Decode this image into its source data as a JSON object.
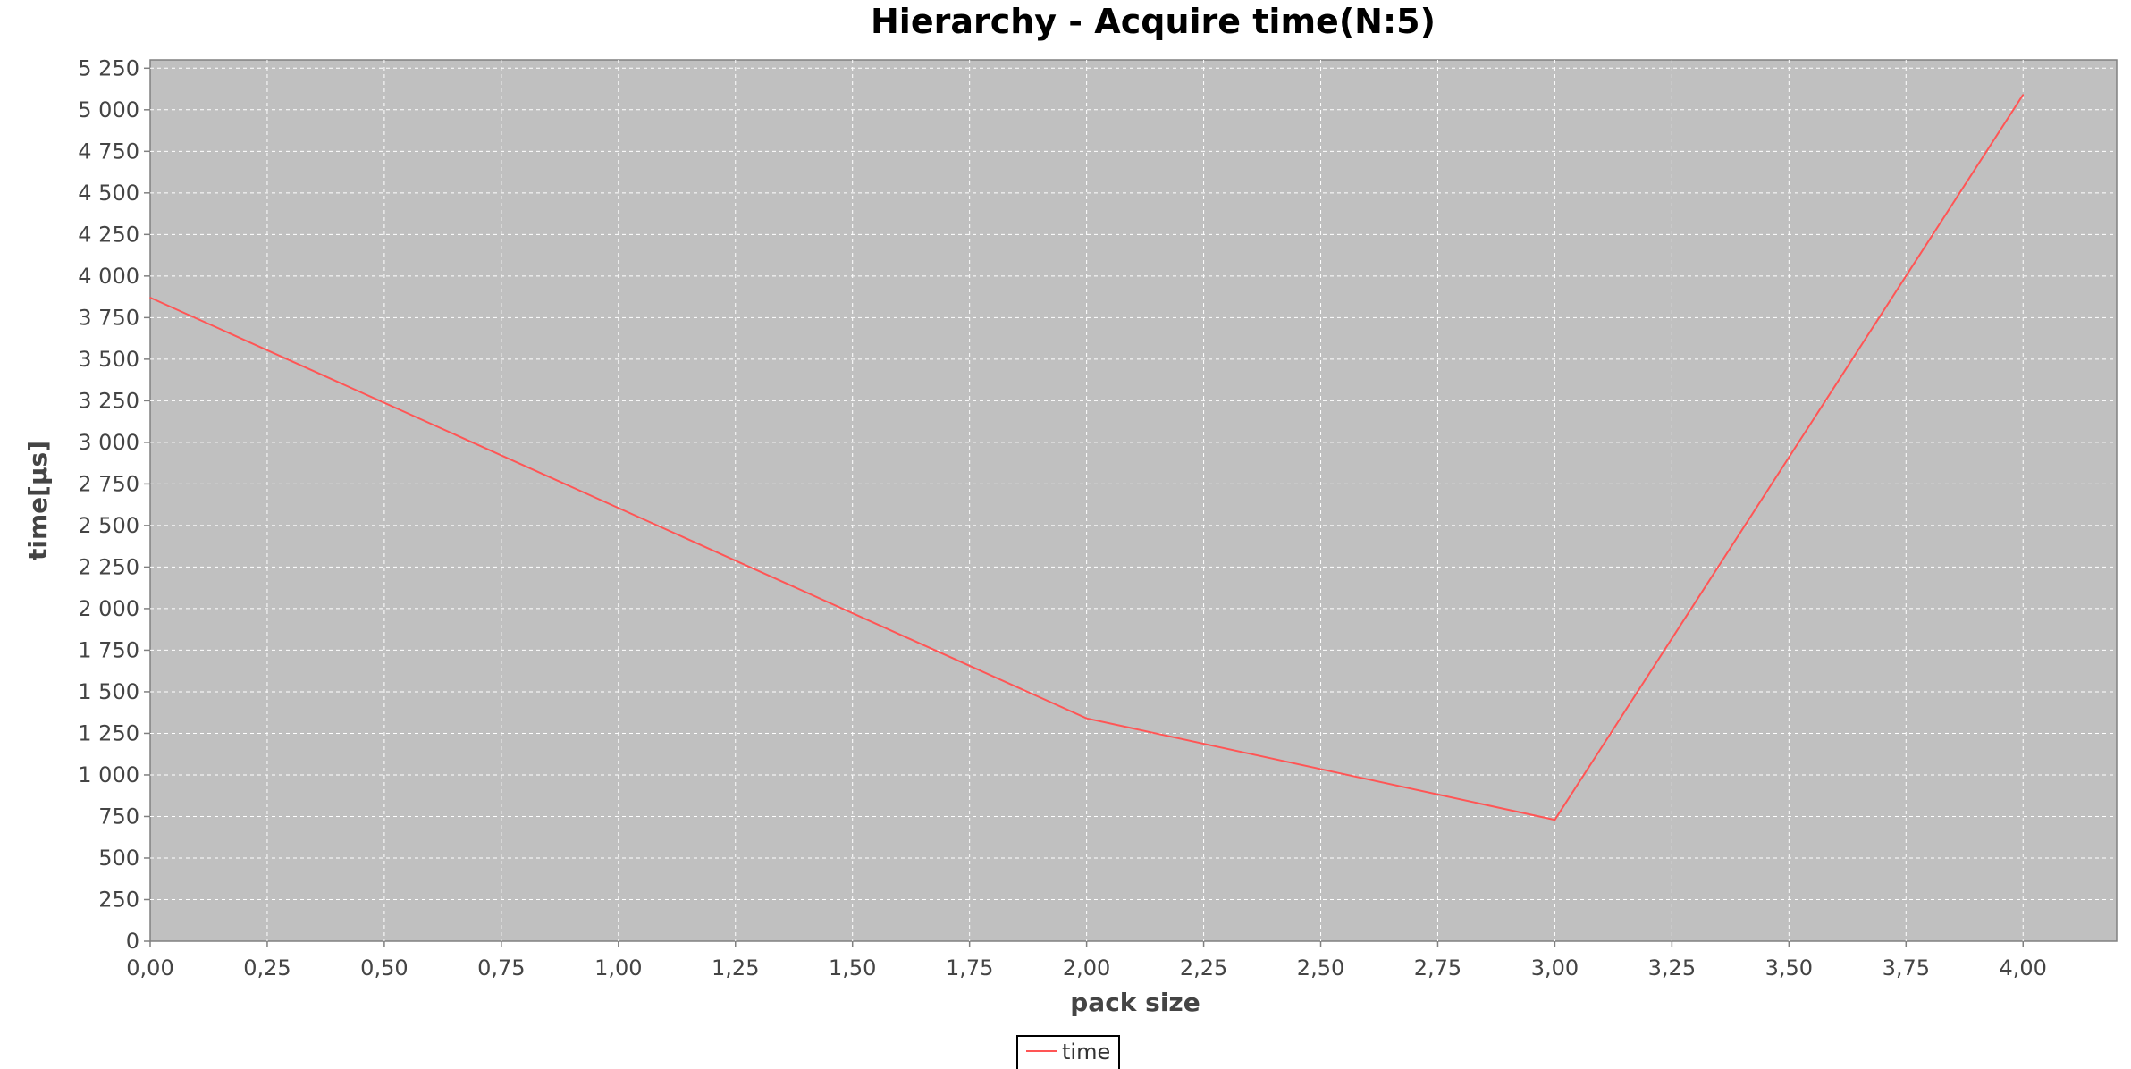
{
  "chart_data": {
    "type": "line",
    "title": "Hierarchy - Acquire time(N:5)",
    "xlabel": "pack size",
    "ylabel": "time[µs]",
    "xlim": [
      0,
      4.2
    ],
    "ylim": [
      0,
      5300
    ],
    "x_ticks": [
      0,
      0.25,
      0.5,
      0.75,
      1.0,
      1.25,
      1.5,
      1.75,
      2.0,
      2.25,
      2.5,
      2.75,
      3.0,
      3.25,
      3.5,
      3.75,
      4.0
    ],
    "x_tick_labels": [
      "0,00",
      "0,25",
      "0,50",
      "0,75",
      "1,00",
      "1,25",
      "1,50",
      "1,75",
      "2,00",
      "2,25",
      "2,50",
      "2,75",
      "3,00",
      "3,25",
      "3,50",
      "3,75",
      "4,00"
    ],
    "y_ticks": [
      0,
      250,
      500,
      750,
      1000,
      1250,
      1500,
      1750,
      2000,
      2250,
      2500,
      2750,
      3000,
      3250,
      3500,
      3750,
      4000,
      4250,
      4500,
      4750,
      5000,
      5250
    ],
    "y_tick_labels": [
      "0",
      "250",
      "500",
      "750",
      "1 000",
      "1 250",
      "1 500",
      "1 750",
      "2 000",
      "2 250",
      "2 500",
      "2 750",
      "3 000",
      "3 250",
      "3 500",
      "3 750",
      "4 000",
      "4 250",
      "4 500",
      "4 750",
      "5 000",
      "5 250"
    ],
    "grid": true,
    "legend_position": "bottom-center",
    "plot_background": "#c0c0c0",
    "series": [
      {
        "name": "time",
        "color": "#ff5555",
        "x": [
          0,
          2,
          3,
          4
        ],
        "y": [
          3870,
          1340,
          730,
          5090
        ]
      }
    ]
  }
}
